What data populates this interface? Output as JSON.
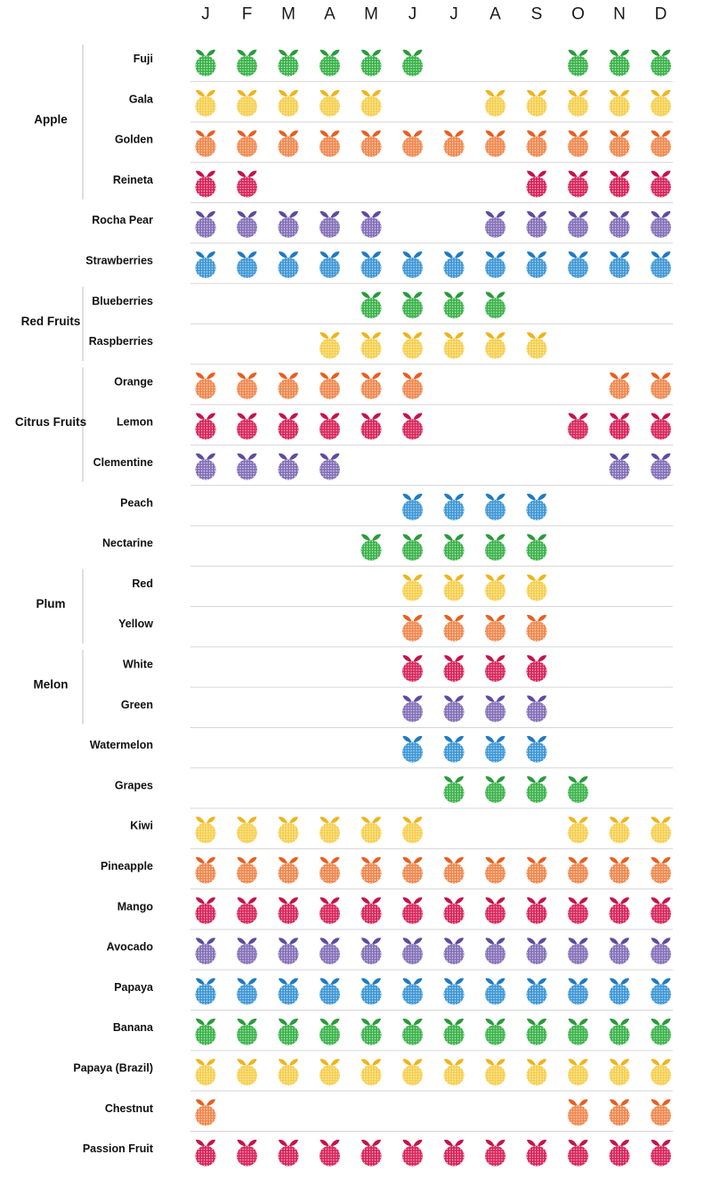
{
  "chart_data": {
    "type": "table",
    "title": "",
    "months": [
      "J",
      "F",
      "M",
      "A",
      "M",
      "J",
      "J",
      "A",
      "S",
      "O",
      "N",
      "D"
    ],
    "palette": {
      "green": {
        "body": "#3bb34a",
        "leaf": "#2a9a3c"
      },
      "yellow": {
        "body": "#f6cf4e",
        "leaf": "#f0b31a"
      },
      "orange": {
        "body": "#f0884e",
        "leaf": "#e85e1f"
      },
      "red": {
        "body": "#d8245a",
        "leaf": "#c4134a"
      },
      "purple": {
        "body": "#8470b8",
        "leaf": "#5f4aa0"
      },
      "blue": {
        "body": "#3e97d6",
        "leaf": "#1f7ac2"
      }
    },
    "groups": [
      {
        "label": "Apple",
        "rows": [
          0,
          3
        ]
      },
      {
        "label": "Red Fruits",
        "rows": [
          6,
          7
        ]
      },
      {
        "label": "Citrus Fruits",
        "rows": [
          8,
          10
        ]
      },
      {
        "label": "Plum",
        "rows": [
          13,
          14
        ]
      },
      {
        "label": "Melon",
        "rows": [
          15,
          16
        ]
      }
    ],
    "rows": [
      {
        "label": "Fuji",
        "color": "green",
        "months": [
          1,
          1,
          1,
          1,
          1,
          1,
          0,
          0,
          0,
          1,
          1,
          1
        ]
      },
      {
        "label": "Gala",
        "color": "yellow",
        "months": [
          1,
          1,
          1,
          1,
          1,
          0,
          0,
          1,
          1,
          1,
          1,
          1
        ]
      },
      {
        "label": "Golden",
        "color": "orange",
        "months": [
          1,
          1,
          1,
          1,
          1,
          1,
          1,
          1,
          1,
          1,
          1,
          1
        ]
      },
      {
        "label": "Reineta",
        "color": "red",
        "months": [
          1,
          1,
          0,
          0,
          0,
          0,
          0,
          0,
          1,
          1,
          1,
          1
        ]
      },
      {
        "label": "Rocha Pear",
        "color": "purple",
        "months": [
          1,
          1,
          1,
          1,
          1,
          0,
          0,
          1,
          1,
          1,
          1,
          1
        ]
      },
      {
        "label": "Strawberries",
        "color": "blue",
        "months": [
          1,
          1,
          1,
          1,
          1,
          1,
          1,
          1,
          1,
          1,
          1,
          1
        ]
      },
      {
        "label": "Blueberries",
        "color": "green",
        "months": [
          0,
          0,
          0,
          0,
          1,
          1,
          1,
          1,
          0,
          0,
          0,
          0
        ]
      },
      {
        "label": "Raspberries",
        "color": "yellow",
        "months": [
          0,
          0,
          0,
          1,
          1,
          1,
          1,
          1,
          1,
          0,
          0,
          0
        ]
      },
      {
        "label": "Orange",
        "color": "orange",
        "months": [
          1,
          1,
          1,
          1,
          1,
          1,
          0,
          0,
          0,
          0,
          1,
          1
        ]
      },
      {
        "label": "Lemon",
        "color": "red",
        "months": [
          1,
          1,
          1,
          1,
          1,
          1,
          0,
          0,
          0,
          1,
          1,
          1
        ]
      },
      {
        "label": "Clementine",
        "color": "purple",
        "months": [
          1,
          1,
          1,
          1,
          0,
          0,
          0,
          0,
          0,
          0,
          1,
          1
        ]
      },
      {
        "label": "Peach",
        "color": "blue",
        "months": [
          0,
          0,
          0,
          0,
          0,
          1,
          1,
          1,
          1,
          0,
          0,
          0
        ]
      },
      {
        "label": "Nectarine",
        "color": "green",
        "months": [
          0,
          0,
          0,
          0,
          1,
          1,
          1,
          1,
          1,
          0,
          0,
          0
        ]
      },
      {
        "label": "Red",
        "color": "yellow",
        "months": [
          0,
          0,
          0,
          0,
          0,
          1,
          1,
          1,
          1,
          0,
          0,
          0
        ]
      },
      {
        "label": "Yellow",
        "color": "orange",
        "months": [
          0,
          0,
          0,
          0,
          0,
          1,
          1,
          1,
          1,
          0,
          0,
          0
        ]
      },
      {
        "label": "White",
        "color": "red",
        "months": [
          0,
          0,
          0,
          0,
          0,
          1,
          1,
          1,
          1,
          0,
          0,
          0
        ]
      },
      {
        "label": "Green",
        "color": "purple",
        "months": [
          0,
          0,
          0,
          0,
          0,
          1,
          1,
          1,
          1,
          0,
          0,
          0
        ]
      },
      {
        "label": "Watermelon",
        "color": "blue",
        "months": [
          0,
          0,
          0,
          0,
          0,
          1,
          1,
          1,
          1,
          0,
          0,
          0
        ]
      },
      {
        "label": "Grapes",
        "color": "green",
        "months": [
          0,
          0,
          0,
          0,
          0,
          0,
          1,
          1,
          1,
          1,
          0,
          0
        ]
      },
      {
        "label": "Kiwi",
        "color": "yellow",
        "months": [
          1,
          1,
          1,
          1,
          1,
          1,
          0,
          0,
          0,
          1,
          1,
          1
        ]
      },
      {
        "label": "Pineapple",
        "color": "orange",
        "months": [
          1,
          1,
          1,
          1,
          1,
          1,
          1,
          1,
          1,
          1,
          1,
          1
        ]
      },
      {
        "label": "Mango",
        "color": "red",
        "months": [
          1,
          1,
          1,
          1,
          1,
          1,
          1,
          1,
          1,
          1,
          1,
          1
        ]
      },
      {
        "label": "Avocado",
        "color": "purple",
        "months": [
          1,
          1,
          1,
          1,
          1,
          1,
          1,
          1,
          1,
          1,
          1,
          1
        ]
      },
      {
        "label": "Papaya",
        "color": "blue",
        "months": [
          1,
          1,
          1,
          1,
          1,
          1,
          1,
          1,
          1,
          1,
          1,
          1
        ]
      },
      {
        "label": "Banana",
        "color": "green",
        "months": [
          1,
          1,
          1,
          1,
          1,
          1,
          1,
          1,
          1,
          1,
          1,
          1
        ]
      },
      {
        "label": "Papaya (Brazil)",
        "color": "yellow",
        "months": [
          1,
          1,
          1,
          1,
          1,
          1,
          1,
          1,
          1,
          1,
          1,
          1
        ]
      },
      {
        "label": "Chestnut",
        "color": "orange",
        "months": [
          1,
          0,
          0,
          0,
          0,
          0,
          0,
          0,
          0,
          1,
          1,
          1
        ]
      },
      {
        "label": "Passion Fruit",
        "color": "red",
        "months": [
          1,
          1,
          1,
          1,
          1,
          1,
          1,
          1,
          1,
          1,
          1,
          1
        ]
      }
    ]
  }
}
